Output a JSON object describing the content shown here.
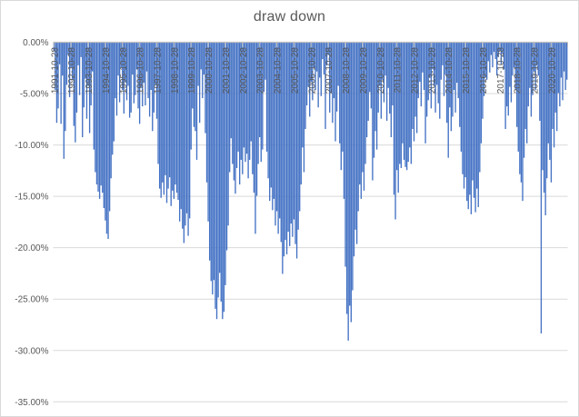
{
  "window": {
    "background": "#FFFFFF",
    "border_color": "#D9D9D9"
  },
  "chart_data": {
    "type": "area",
    "title": "draw down",
    "series_name": "draw down",
    "x_start": "1991-10",
    "x_end": "2021-09",
    "points_per_year": 12,
    "x_unit": "month",
    "y_unit": "percent",
    "ylim": [
      -35,
      0
    ],
    "y_tick_step": 5,
    "grid": "horizontal",
    "legend": "none",
    "colors": {
      "series_fill": "#4472C4",
      "gridline": "#D9D9D9",
      "axis_line": "#BFBFBF",
      "tick_mark": "#BFBFBF",
      "label_text": "#595959",
      "title_text": "#595959"
    },
    "y_tick_labels": [
      "0.00%",
      "-5.00%",
      "-10.00%",
      "-15.00%",
      "-20.00%",
      "-25.00%",
      "-30.00%",
      "-35.00%"
    ],
    "x_tick_labels": [
      "1991-10-28",
      "1992-10-28",
      "1993-10-28",
      "1994-10-28",
      "1995-10-28",
      "1996-10-28",
      "1997-10-28",
      "1998-10-28",
      "1999-10-28",
      "2000-10-28",
      "2001-10-28",
      "2002-10-28",
      "2003-10-28",
      "2004-10-28",
      "2005-10-28",
      "2006-10-28",
      "2007-10-28",
      "2008-10-28",
      "2009-10-28",
      "2010-10-28",
      "2011-10-28",
      "2012-10-28",
      "2013-10-28",
      "2014-10-28",
      "2015-10-28",
      "2016-10-28",
      "2017-10-28",
      "2018-10-28",
      "2019-10-28",
      "2020-10-28"
    ],
    "values": [
      -0.8,
      -4.6,
      -7.8,
      -6.4,
      -2.1,
      -7.9,
      -3.2,
      -11.3,
      -8.6,
      -4.1,
      -1.2,
      -5.3,
      -2.4,
      -3.6,
      -8.1,
      -9.7,
      -6.8,
      -2.2,
      -5.1,
      -1.4,
      -9.2,
      -6.3,
      -3.5,
      -7.4,
      -4.2,
      -8.8,
      -6.1,
      -2.8,
      -10.4,
      -12.6,
      -13.8,
      -14.5,
      -15.2,
      -13.9,
      -14.6,
      -16.1,
      -17.3,
      -18.6,
      -19.1,
      -16.4,
      -13.2,
      -10.9,
      -9.6,
      -5.4,
      -7.1,
      -3.2,
      -5.8,
      -2.4,
      -4.6,
      -6.9,
      -3.8,
      -5.6,
      -4.2,
      -7.3,
      -6.8,
      -3.1,
      -5.9,
      -5.1,
      -2.6,
      -6.4,
      -7.9,
      -4.4,
      -6.2,
      -3.9,
      -6.1,
      -2.8,
      -5.4,
      -7.2,
      -4.6,
      -8.6,
      -6.8,
      -4.1,
      -7.4,
      -11.8,
      -14.2,
      -15.1,
      -13.6,
      -14.8,
      -12.9,
      -15.6,
      -14.2,
      -13.1,
      -15.9,
      -14.4,
      -15.2,
      -13.8,
      -14.6,
      -15.3,
      -17.4,
      -16.2,
      -18.1,
      -19.5,
      -17.8,
      -16.6,
      -18.8,
      -17.1,
      -10.4,
      -6.4,
      -8.2,
      -8.6,
      -11.4,
      -4.2,
      -7.8,
      -2.6,
      -5.4,
      -3.1,
      -8.8,
      -13.6,
      -17.4,
      -21.2,
      -23.2,
      -24.5,
      -23.1,
      -25.9,
      -26.9,
      -24.8,
      -22.4,
      -25.2,
      -26.9,
      -26.2,
      -23.6,
      -20.2,
      -17.8,
      -12.6,
      -9.3,
      -11.8,
      -13.4,
      -14.7,
      -12.2,
      -10.6,
      -13.8,
      -11.4,
      -12.8,
      -10.2,
      -11.6,
      -10.8,
      -13.2,
      -11.4,
      -9.6,
      -12.8,
      -14.6,
      -18.6,
      -14.9,
      -11.8,
      -9.2,
      -11.6,
      -10.4,
      -4.8,
      -3.6,
      -10.6,
      -13.2,
      -15.4,
      -14.1,
      -16.3,
      -15.2,
      -17.8,
      -16.4,
      -18.6,
      -17.1,
      -19.4,
      -22.5,
      -20.8,
      -19.2,
      -20.6,
      -18.4,
      -19.8,
      -17.6,
      -18.9,
      -17.2,
      -19.6,
      -21.0,
      -18.2,
      -16.4,
      -13.8,
      -10.2,
      -12.6,
      -8.4,
      -6.1,
      -4.3,
      -7.2,
      -3.8,
      -5.6,
      -2.4,
      -4.6,
      -2.8,
      -6.3,
      -3.4,
      -5.2,
      -1.6,
      -3.1,
      -8.4,
      -2.2,
      -1.2,
      -6.8,
      -4.9,
      -7.8,
      -5.4,
      -9.6,
      -6.7,
      -4.2,
      -9.8,
      -12.4,
      -10.6,
      -15.2,
      -21.8,
      -26.4,
      -29.0,
      -25.6,
      -27.2,
      -24.1,
      -20.8,
      -18.2,
      -19.6,
      -16.4,
      -13.8,
      -15.2,
      -12.6,
      -14.4,
      -11.8,
      -9.2,
      -7.6,
      -4.8,
      -6.4,
      -13.4,
      -11.2,
      -8.6,
      -10.4,
      -6.8,
      -4.2,
      -7.4,
      -3.6,
      -5.8,
      -3.2,
      -7.6,
      -4.4,
      -6.9,
      -9.2,
      -6.1,
      -14.8,
      -17.2,
      -12.4,
      -14.6,
      -11.8,
      -12.2,
      -9.8,
      -11.4,
      -12.1,
      -12.4,
      -11.6,
      -10.2,
      -11.8,
      -8.4,
      -9.6,
      -7.2,
      -8.8,
      -5.4,
      -3.8,
      -6.2,
      -2.9,
      -4.6,
      -9.8,
      -7.2,
      -5.6,
      -3.4,
      -6.4,
      -2.6,
      -4.2,
      -6.8,
      -4.1,
      -5.9,
      -7.4,
      -3.6,
      -2.2,
      -5.2,
      -3.1,
      -7.8,
      -11.2,
      -6.3,
      -8.6,
      -7.2,
      -4.6,
      -6.8,
      -3.9,
      -5.4,
      -8.2,
      -10.6,
      -12.8,
      -14.2,
      -13.1,
      -15.4,
      -16.2,
      -14.8,
      -16.7,
      -13.4,
      -15.1,
      -16.5,
      -14.2,
      -16.0,
      -12.6,
      -9.8,
      -7.4,
      -5.2,
      -3.4,
      -3.6,
      -1.8,
      -2.9,
      -1.2,
      -2.4,
      -0.9,
      -1.6,
      -3.2,
      -1.4,
      -0.8,
      -2.1,
      -1.1,
      -2.6,
      -8.4,
      -6.2,
      -7.1,
      -4.3,
      -5.8,
      -3.2,
      -2.4,
      -4.6,
      -8.2,
      -10.6,
      -12.8,
      -13.6,
      -15.4,
      -11.2,
      -8.4,
      -9.8,
      -6.2,
      -4.4,
      -7.2,
      -5.1,
      -2.8,
      -4.6,
      -2.2,
      -3.2,
      -7.6,
      -28.3,
      -12.4,
      -14.6,
      -16.8,
      -13.2,
      -9.8,
      -11.4,
      -13.6,
      -8.4,
      -10.2,
      -6.8,
      -8.6,
      -4.9,
      -6.2,
      -3.4,
      -5.6,
      -2.8,
      -4.6,
      -3.6
    ]
  }
}
